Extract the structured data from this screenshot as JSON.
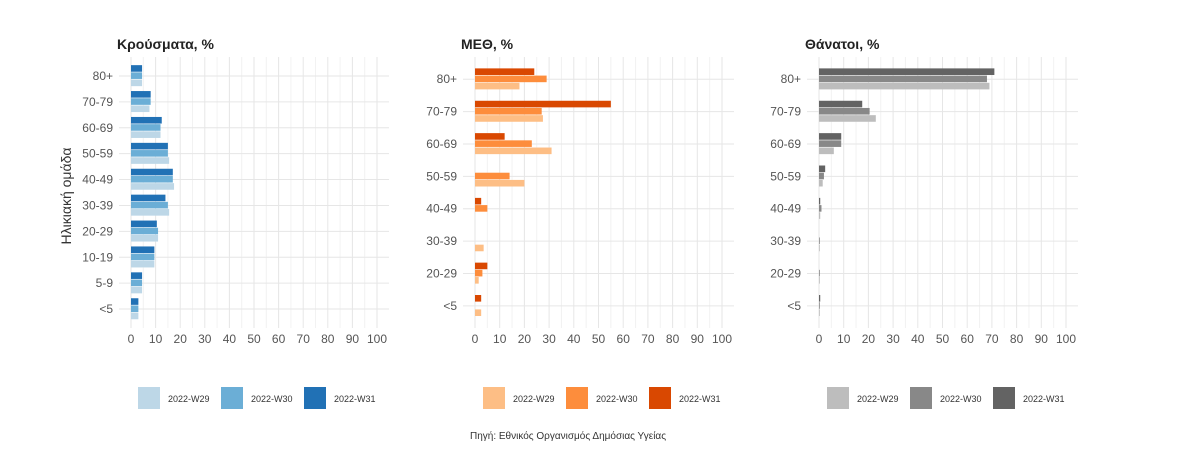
{
  "source": "Πηγή: Εθνικός Οργανισμός Δημόσιας Υγείας",
  "ylabel": "Ηλικιακή ομάδα",
  "legend_labels": [
    "2022-W29",
    "2022-W30",
    "2022-W31"
  ],
  "chart_data": [
    {
      "type": "bar",
      "orientation": "horizontal",
      "title": "Κρούσματα, %",
      "xlim": [
        0,
        100
      ],
      "xticks": [
        0,
        10,
        20,
        30,
        40,
        50,
        60,
        70,
        80,
        90,
        100
      ],
      "categories": [
        "80+",
        "70-79",
        "60-69",
        "50-59",
        "40-49",
        "30-39",
        "20-29",
        "10-19",
        "5-9",
        "<5"
      ],
      "series": [
        {
          "name": "2022-W31",
          "color": "#2171b5",
          "values": [
            4.5,
            8,
            12.5,
            15,
            17,
            14,
            10.5,
            9.5,
            4.5,
            3
          ]
        },
        {
          "name": "2022-W30",
          "color": "#6baed6",
          "values": [
            4.5,
            8,
            12,
            15,
            17,
            15,
            11,
            9.5,
            4.5,
            3
          ]
        },
        {
          "name": "2022-W29",
          "color": "#bdd7e7",
          "values": [
            4.5,
            7.5,
            12,
            15.5,
            17.5,
            15.5,
            11,
            9.5,
            4.5,
            3
          ]
        }
      ]
    },
    {
      "type": "bar",
      "orientation": "horizontal",
      "title": "ΜΕΘ, %",
      "xlim": [
        0,
        100
      ],
      "xticks": [
        0,
        10,
        20,
        30,
        40,
        50,
        60,
        70,
        80,
        90,
        100
      ],
      "categories": [
        "80+",
        "70-79",
        "60-69",
        "50-59",
        "40-49",
        "30-39",
        "20-29",
        "<5"
      ],
      "series": [
        {
          "name": "2022-W31",
          "color": "#d94801",
          "values": [
            24,
            55,
            12,
            0,
            2.5,
            0,
            5,
            2.5
          ]
        },
        {
          "name": "2022-W30",
          "color": "#fd8d3c",
          "values": [
            29,
            27,
            23,
            14,
            5,
            0,
            3,
            0
          ]
        },
        {
          "name": "2022-W29",
          "color": "#fdbe85",
          "values": [
            18,
            27.5,
            31,
            20,
            0,
            3.5,
            1.5,
            2.5
          ]
        }
      ]
    },
    {
      "type": "bar",
      "orientation": "horizontal",
      "title": "Θάνατοι, %",
      "xlim": [
        0,
        100
      ],
      "xticks": [
        0,
        10,
        20,
        30,
        40,
        50,
        60,
        70,
        80,
        90,
        100
      ],
      "categories": [
        "80+",
        "70-79",
        "60-69",
        "50-59",
        "40-49",
        "30-39",
        "20-29",
        "<5"
      ],
      "series": [
        {
          "name": "2022-W31",
          "color": "#636363",
          "values": [
            71,
            17.5,
            9,
            2.5,
            0.5,
            0,
            0,
            0.5
          ]
        },
        {
          "name": "2022-W30",
          "color": "#888888",
          "values": [
            68,
            20.5,
            9,
            2,
            1,
            0.3,
            0.3,
            0.3
          ]
        },
        {
          "name": "2022-W29",
          "color": "#bdbdbd",
          "values": [
            69,
            23,
            6,
            1.5,
            0.5,
            0.3,
            0.3,
            0.3
          ]
        }
      ]
    }
  ]
}
